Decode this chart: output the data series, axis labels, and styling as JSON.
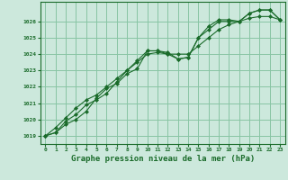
{
  "title": "Graphe pression niveau de la mer (hPa)",
  "background_color": "#cce8dc",
  "grid_color": "#88c4a4",
  "line_color": "#1a6b2a",
  "x_ticks": [
    0,
    1,
    2,
    3,
    4,
    5,
    6,
    7,
    8,
    9,
    10,
    11,
    12,
    13,
    14,
    15,
    16,
    17,
    18,
    19,
    20,
    21,
    22,
    23
  ],
  "ylim": [
    1018.5,
    1027.2
  ],
  "y_ticks": [
    1019,
    1020,
    1021,
    1022,
    1023,
    1024,
    1025,
    1026
  ],
  "series1": [
    1019.0,
    1019.2,
    1019.7,
    1020.0,
    1020.5,
    1021.3,
    1021.9,
    1022.2,
    1022.8,
    1023.1,
    1024.2,
    1024.2,
    1024.1,
    1023.7,
    1023.8,
    1025.0,
    1025.5,
    1026.0,
    1026.0,
    1026.0,
    1026.5,
    1026.7,
    1026.7,
    1026.1
  ],
  "series2": [
    1019.0,
    1019.2,
    1019.9,
    1020.3,
    1020.9,
    1021.2,
    1021.6,
    1022.3,
    1023.0,
    1023.6,
    1024.2,
    1024.2,
    1024.0,
    1023.7,
    1023.8,
    1025.0,
    1025.7,
    1026.1,
    1026.1,
    1026.0,
    1026.5,
    1026.7,
    1026.7,
    1026.1
  ],
  "series3": [
    1019.0,
    1019.5,
    1020.1,
    1020.7,
    1021.2,
    1021.5,
    1022.0,
    1022.5,
    1023.0,
    1023.5,
    1024.0,
    1024.1,
    1024.0,
    1024.0,
    1024.0,
    1024.5,
    1025.0,
    1025.5,
    1025.8,
    1026.0,
    1026.2,
    1026.3,
    1026.3,
    1026.1
  ]
}
